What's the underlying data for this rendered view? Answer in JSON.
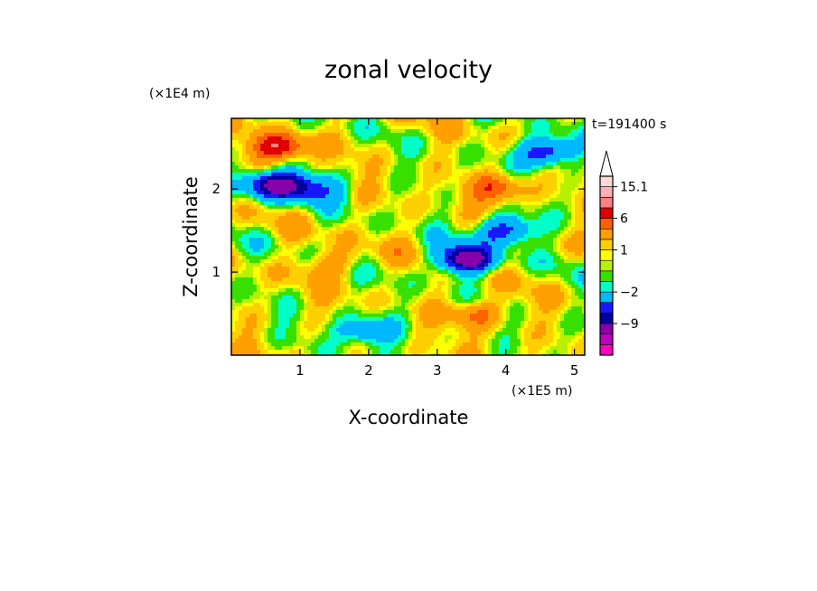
{
  "chart_data": {
    "type": "heatmap",
    "title": "zonal velocity",
    "xlabel": "X-coordinate",
    "ylabel": "Z-coordinate",
    "x_scale_label": "(×1E5 m)",
    "y_scale_label": "(×1E4 m)",
    "time_label": "t=191400 s",
    "xlim": [
      0,
      5.15
    ],
    "ylim": [
      0,
      2.85
    ],
    "x_ticks": [
      1,
      2,
      3,
      4,
      5
    ],
    "y_ticks": [
      1,
      2
    ],
    "colorbar": {
      "levels": [
        {
          "color": "#ff00c0"
        },
        {
          "color": "#c000c0"
        },
        {
          "color": "#8800aa"
        },
        {
          "color": "#0000a0"
        },
        {
          "color": "#1818ff"
        },
        {
          "color": "#00b8ff"
        },
        {
          "color": "#00ffc8"
        },
        {
          "color": "#38e000"
        },
        {
          "color": "#b8f000"
        },
        {
          "color": "#ffff00"
        },
        {
          "color": "#ffd000"
        },
        {
          "color": "#ffa000"
        },
        {
          "color": "#ff6000"
        },
        {
          "color": "#e00000"
        },
        {
          "color": "#ff8080"
        },
        {
          "color": "#ffb0b0"
        },
        {
          "color": "#ffd8d8"
        }
      ],
      "tick_labels": [
        {
          "text": "15.1",
          "value": 15.1
        },
        {
          "text": "6",
          "value": 6
        },
        {
          "text": "1",
          "value": 1
        },
        {
          "text": "−2",
          "value": -2
        },
        {
          "text": "−9",
          "value": -9
        }
      ],
      "extend": "max"
    },
    "features": [
      {
        "x": 0.7,
        "z": 2.5,
        "value": 7
      },
      {
        "x": 0.6,
        "z": 2.05,
        "value": -11
      },
      {
        "x": 1.2,
        "z": 2.0,
        "value": -6
      },
      {
        "x": 3.4,
        "z": 1.15,
        "value": -12
      },
      {
        "x": 4.6,
        "z": 2.45,
        "value": -9
      },
      {
        "x": 4.0,
        "z": 1.5,
        "value": -8
      },
      {
        "x": 3.6,
        "z": 0.5,
        "value": 4
      },
      {
        "x": 3.9,
        "z": 2.0,
        "value": 5
      },
      {
        "x": 1.5,
        "z": 1.1,
        "value": 3
      },
      {
        "x": 1.95,
        "z": 0.3,
        "value": -6
      }
    ]
  }
}
